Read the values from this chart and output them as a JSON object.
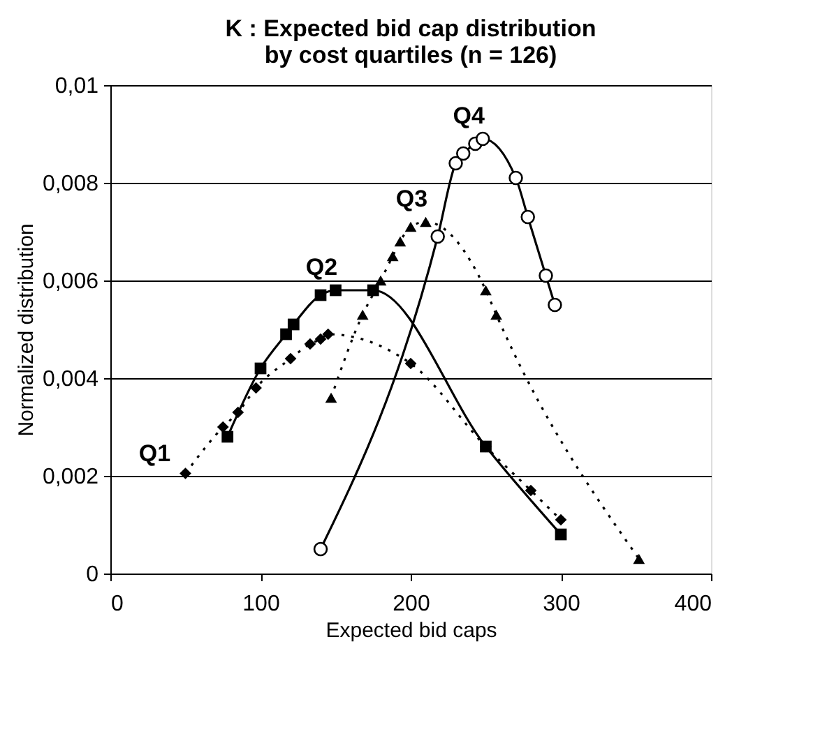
{
  "chart_data": {
    "type": "line",
    "title": [
      "K : Expected bid cap distribution",
      "by cost quartiles (n = 126)"
    ],
    "xlabel": "Expected bid caps",
    "ylabel": "Normalized distribution",
    "xlim": [
      0,
      400
    ],
    "xticks": [
      0,
      100,
      200,
      300,
      400
    ],
    "ylim": [
      0,
      0.01
    ],
    "yticks": [
      {
        "value": 0,
        "label": "0"
      },
      {
        "value": 0.002,
        "label": "0,002"
      },
      {
        "value": 0.004,
        "label": "0,004"
      },
      {
        "value": 0.006,
        "label": "0,006"
      },
      {
        "value": 0.008,
        "label": "0,008"
      },
      {
        "value": 0.01,
        "label": "0,01"
      }
    ],
    "grid": "y",
    "legend": false,
    "series": [
      {
        "name": "Q1",
        "color": "#000000",
        "marker": "diamond",
        "line_style": "dotted",
        "x": [
          50,
          75,
          85,
          97,
          120,
          133,
          140,
          145,
          200,
          250,
          280,
          300
        ],
        "values": [
          0.00205,
          0.003,
          0.0033,
          0.0038,
          0.0044,
          0.0047,
          0.0048,
          0.0049,
          0.0043,
          0.0026,
          0.0017,
          0.0011
        ]
      },
      {
        "name": "Q2",
        "color": "#000000",
        "marker": "square",
        "line_style": "solid",
        "x": [
          78,
          100,
          117,
          122,
          140,
          150,
          175,
          250,
          300
        ],
        "values": [
          0.0028,
          0.0042,
          0.0049,
          0.0051,
          0.0057,
          0.0058,
          0.0058,
          0.0026,
          0.0008
        ]
      },
      {
        "name": "Q3",
        "color": "#000000",
        "marker": "triangle",
        "line_style": "dotted",
        "x": [
          147,
          168,
          180,
          188,
          193,
          200,
          210,
          250,
          257,
          352
        ],
        "values": [
          0.0036,
          0.0053,
          0.006,
          0.0065,
          0.0068,
          0.0071,
          0.0072,
          0.0058,
          0.0053,
          0.0003
        ]
      },
      {
        "name": "Q4",
        "color": "#000000",
        "marker": "circle",
        "line_style": "solid",
        "x": [
          140,
          218,
          230,
          235,
          243,
          248,
          270,
          278,
          290,
          296
        ],
        "values": [
          0.0005,
          0.0069,
          0.0084,
          0.0086,
          0.0088,
          0.0089,
          0.0081,
          0.0073,
          0.0061,
          0.0055
        ]
      }
    ]
  }
}
